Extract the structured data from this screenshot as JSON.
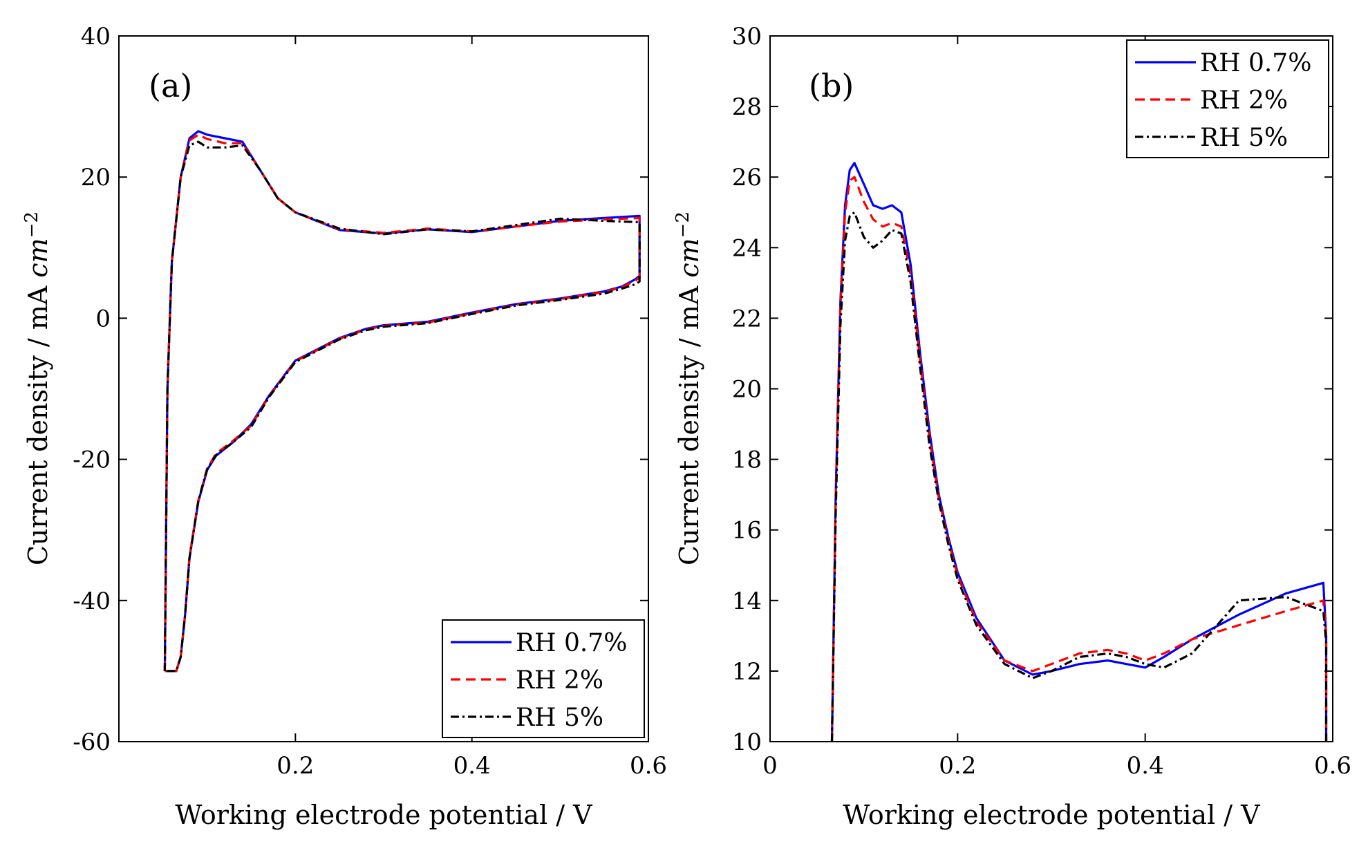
{
  "chart_data": [
    {
      "type": "line",
      "panel_label": "(a)",
      "xlabel": "Working electrode potential / V",
      "ylabel_main": "Current density / mA ",
      "ylabel_unit": "cm",
      "ylabel_exp": "−2",
      "xlim": [
        0.0,
        0.6
      ],
      "ylim": [
        -60,
        40
      ],
      "xticks": [
        0.2,
        0.4,
        0.6
      ],
      "xtick_labels": [
        "0.2",
        "0.4",
        "0.6"
      ],
      "yticks": [
        -60,
        -40,
        -20,
        0,
        20,
        40
      ],
      "ytick_labels": [
        "-60",
        "-40",
        "-20",
        "0",
        "20",
        "40"
      ],
      "legend_position": "bottom-right",
      "series": [
        {
          "name": "RH 0.7%",
          "color": "#0000ff",
          "style": "solid",
          "x": [
            0.052,
            0.055,
            0.06,
            0.07,
            0.08,
            0.09,
            0.1,
            0.12,
            0.14,
            0.16,
            0.18,
            0.2,
            0.25,
            0.3,
            0.35,
            0.4,
            0.45,
            0.5,
            0.55,
            0.59,
            0.59,
            0.585,
            0.57,
            0.55,
            0.5,
            0.45,
            0.4,
            0.35,
            0.3,
            0.28,
            0.25,
            0.2,
            0.17,
            0.15,
            0.13,
            0.11,
            0.1,
            0.09,
            0.08,
            0.075,
            0.07,
            0.065,
            0.06,
            0.055,
            0.052
          ],
          "y": [
            -50,
            -10,
            8,
            20,
            25.5,
            26.5,
            26,
            25.5,
            25,
            21,
            17,
            15,
            12.5,
            12,
            12.6,
            12.2,
            13,
            13.8,
            14.2,
            14.5,
            6,
            5.5,
            4.5,
            3.8,
            2.8,
            2,
            0.8,
            -0.5,
            -1,
            -1.5,
            -2.8,
            -6,
            -11,
            -15,
            -17.5,
            -19.5,
            -21.5,
            -26,
            -34,
            -42,
            -48,
            -50,
            -50,
            -50,
            -50
          ]
        },
        {
          "name": "RH 2%",
          "color": "#ff0000",
          "style": "dashed",
          "x": [
            0.052,
            0.055,
            0.06,
            0.07,
            0.08,
            0.09,
            0.1,
            0.12,
            0.14,
            0.16,
            0.18,
            0.2,
            0.25,
            0.3,
            0.35,
            0.4,
            0.45,
            0.5,
            0.55,
            0.59,
            0.59,
            0.585,
            0.57,
            0.55,
            0.5,
            0.45,
            0.4,
            0.35,
            0.3,
            0.28,
            0.25,
            0.2,
            0.17,
            0.15,
            0.13,
            0.11,
            0.1,
            0.09,
            0.08,
            0.075,
            0.07,
            0.065,
            0.06,
            0.055,
            0.052
          ],
          "y": [
            -50,
            -10,
            8,
            20,
            25.2,
            26,
            25.4,
            24.8,
            24.8,
            21,
            17,
            15,
            12.6,
            12.1,
            12.7,
            12.3,
            13,
            13.7,
            14,
            14.2,
            5.8,
            5.3,
            4.4,
            3.7,
            2.7,
            1.9,
            0.7,
            -0.6,
            -1.1,
            -1.6,
            -2.9,
            -6.1,
            -11.1,
            -15.2,
            -17.3,
            -19.2,
            -21.3,
            -25.8,
            -33.8,
            -42,
            -48,
            -50,
            -50,
            -50,
            -50
          ]
        },
        {
          "name": "RH 5%",
          "color": "#000000",
          "style": "dashdot",
          "x": [
            0.052,
            0.055,
            0.06,
            0.07,
            0.08,
            0.09,
            0.1,
            0.12,
            0.14,
            0.16,
            0.18,
            0.2,
            0.25,
            0.3,
            0.35,
            0.4,
            0.45,
            0.5,
            0.55,
            0.59,
            0.59,
            0.585,
            0.57,
            0.55,
            0.5,
            0.45,
            0.4,
            0.35,
            0.3,
            0.28,
            0.25,
            0.2,
            0.17,
            0.15,
            0.13,
            0.11,
            0.1,
            0.09,
            0.08,
            0.075,
            0.07,
            0.065,
            0.06,
            0.055,
            0.052
          ],
          "y": [
            -50,
            -10,
            8,
            20,
            24.5,
            25,
            24.2,
            24.2,
            24.5,
            21,
            17,
            15,
            12.7,
            11.9,
            12.6,
            12.3,
            13.2,
            14.1,
            13.8,
            13.6,
            5.2,
            4.8,
            4.2,
            3.5,
            2.6,
            1.8,
            0.6,
            -0.7,
            -1.2,
            -1.7,
            -3,
            -6.2,
            -11.2,
            -15.4,
            -17.5,
            -19.4,
            -21.4,
            -25.9,
            -34,
            -42,
            -48,
            -50,
            -50,
            -50,
            -50
          ]
        }
      ]
    },
    {
      "type": "line",
      "panel_label": "(b)",
      "xlabel": "Working electrode potential / V",
      "ylabel_main": "Current density / mA ",
      "ylabel_unit": "cm",
      "ylabel_exp": "−2",
      "xlim": [
        0.0,
        0.6
      ],
      "ylim": [
        10,
        30
      ],
      "xticks": [
        0,
        0.2,
        0.4,
        0.6
      ],
      "xtick_labels": [
        "0",
        "0.2",
        "0.4",
        "0.6"
      ],
      "yticks": [
        10,
        12,
        14,
        16,
        18,
        20,
        22,
        24,
        26,
        28,
        30
      ],
      "ytick_labels": [
        "10",
        "12",
        "14",
        "16",
        "18",
        "20",
        "22",
        "24",
        "26",
        "28",
        "30"
      ],
      "legend_position": "top-right",
      "series": [
        {
          "name": "RH 0.7%",
          "color": "#0000ff",
          "style": "solid",
          "x": [
            0.066,
            0.07,
            0.075,
            0.08,
            0.085,
            0.09,
            0.1,
            0.11,
            0.12,
            0.13,
            0.14,
            0.15,
            0.16,
            0.17,
            0.18,
            0.19,
            0.2,
            0.22,
            0.25,
            0.28,
            0.3,
            0.33,
            0.36,
            0.38,
            0.4,
            0.42,
            0.45,
            0.5,
            0.55,
            0.59,
            0.593,
            0.593
          ],
          "y": [
            10,
            17,
            22.5,
            25.2,
            26.2,
            26.4,
            25.8,
            25.2,
            25.1,
            25.2,
            25.0,
            23.5,
            21.0,
            18.8,
            17.0,
            15.8,
            14.8,
            13.5,
            12.3,
            11.9,
            12.0,
            12.2,
            12.3,
            12.2,
            12.1,
            12.4,
            12.9,
            13.6,
            14.2,
            14.5,
            13.0,
            10
          ]
        },
        {
          "name": "RH 2%",
          "color": "#ff0000",
          "style": "dashed",
          "x": [
            0.066,
            0.07,
            0.075,
            0.08,
            0.085,
            0.09,
            0.1,
            0.11,
            0.12,
            0.13,
            0.14,
            0.15,
            0.16,
            0.17,
            0.18,
            0.19,
            0.2,
            0.22,
            0.25,
            0.28,
            0.3,
            0.33,
            0.36,
            0.38,
            0.4,
            0.42,
            0.45,
            0.5,
            0.55,
            0.59,
            0.593,
            0.593
          ],
          "y": [
            10,
            17,
            22.3,
            25.0,
            25.9,
            26.0,
            25.3,
            24.8,
            24.6,
            24.7,
            24.6,
            23.2,
            20.8,
            18.6,
            16.9,
            15.7,
            14.7,
            13.4,
            12.3,
            12.0,
            12.2,
            12.5,
            12.6,
            12.5,
            12.3,
            12.5,
            12.9,
            13.3,
            13.7,
            14.0,
            13.0,
            10
          ]
        },
        {
          "name": "RH 5%",
          "color": "#000000",
          "style": "dashdot",
          "x": [
            0.066,
            0.07,
            0.075,
            0.08,
            0.085,
            0.09,
            0.1,
            0.11,
            0.12,
            0.13,
            0.14,
            0.15,
            0.16,
            0.17,
            0.18,
            0.19,
            0.2,
            0.22,
            0.25,
            0.28,
            0.3,
            0.33,
            0.36,
            0.38,
            0.4,
            0.42,
            0.45,
            0.5,
            0.55,
            0.59,
            0.593,
            0.593
          ],
          "y": [
            10,
            16.5,
            21.8,
            24.2,
            24.9,
            25.0,
            24.3,
            24.0,
            24.2,
            24.5,
            24.4,
            23.0,
            20.6,
            18.4,
            16.8,
            15.6,
            14.6,
            13.3,
            12.2,
            11.8,
            12.0,
            12.4,
            12.5,
            12.4,
            12.2,
            12.1,
            12.5,
            14.0,
            14.1,
            13.7,
            12.8,
            10
          ]
        }
      ]
    }
  ]
}
